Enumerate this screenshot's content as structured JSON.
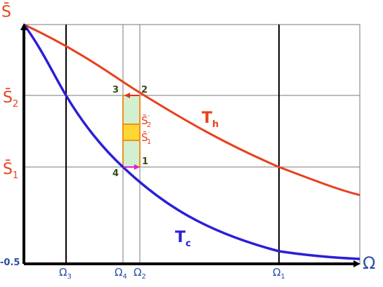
{
  "axes": {
    "y_label": "S̄",
    "x_label": "Ω",
    "origin_label": "-0.5"
  },
  "y_ticks": [
    {
      "base": "S̄",
      "sub": "2"
    },
    {
      "base": "S̄",
      "sub": "1"
    }
  ],
  "x_ticks": [
    {
      "base": "Ω",
      "sub": "3"
    },
    {
      "base": "Ω",
      "sub": "4"
    },
    {
      "base": "Ω",
      "sub": "2"
    },
    {
      "base": "Ω",
      "sub": "1"
    }
  ],
  "curves": {
    "hot": {
      "name": "T",
      "sub": "h",
      "color": "#e8401c"
    },
    "cold": {
      "name": "T",
      "sub": "c",
      "color": "#2b1fd6"
    }
  },
  "points": {
    "p1": "1",
    "p2": "2",
    "p3": "3",
    "p4": "4"
  },
  "cycle_labels": {
    "upper": {
      "base": "S̄",
      "prime": "′",
      "sub": "2"
    },
    "lower": {
      "base": "S̄",
      "prime": "′",
      "sub": "1"
    }
  },
  "colors": {
    "tick_red": "#e8401c",
    "tick_blue": "#2b4fa8",
    "point_green": "#3a4a1a",
    "cycle_fill_green": "#d2f0cf",
    "cycle_fill_yellow": "#ffd733",
    "cycle_stroke": "#f09020",
    "arrow_magenta": "#e020c8",
    "arrow_red": "#e03020",
    "grid": "#7a7a7a"
  }
}
